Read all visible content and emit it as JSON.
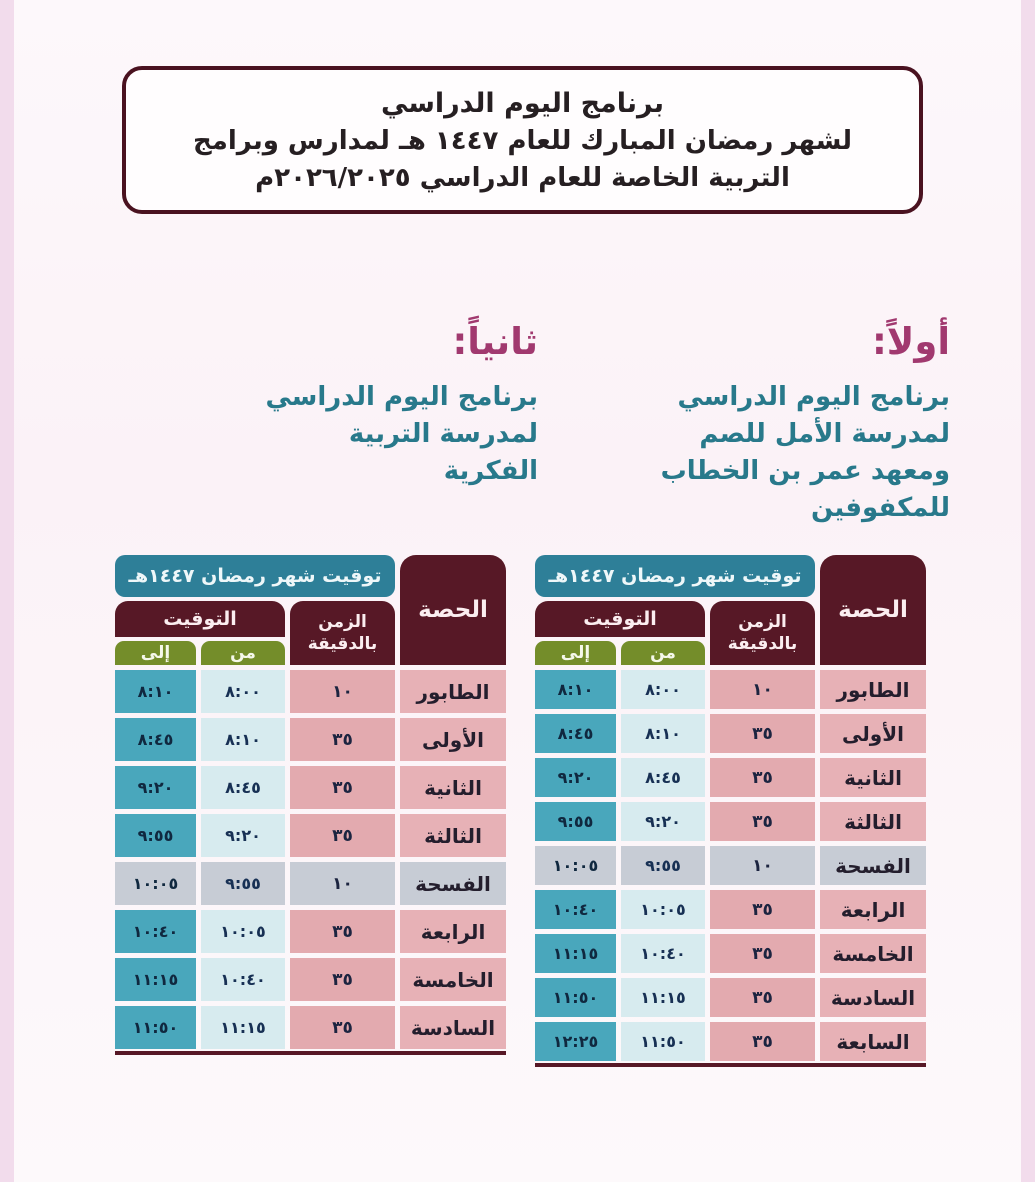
{
  "palette": {
    "page_background": "#fbf2f7",
    "edge_strip_pink": "#f2dcec",
    "maroon": "#571826",
    "teal_banner": "#2e7f98",
    "olive_green": "#748d2a",
    "magenta_heading": "#a1396f",
    "teal_text": "#28798b",
    "period_cell_pink": "#e7b1b6",
    "from_cell_blue": "#d7ebef",
    "to_cell_teal": "#49a7bc",
    "break_row_gray": "#c7ccd5"
  },
  "header": {
    "title": "برنامج اليوم الدراسي",
    "subtitle_line1": "لشهر رمضان المبارك للعام ١٤٤٧ هـ لمدارس وبرامج",
    "subtitle_line2": "التربية الخاصة للعام الدراسي ٢٠٢٦/٢٠٢٥م"
  },
  "sections": {
    "first": {
      "heading": "أولاً:",
      "description": "برنامج اليوم الدراسي\nلمدرسة الأمل للصم\nومعهد عمر بن الخطاب\nللمكفوفين"
    },
    "second": {
      "heading": "ثانياً:",
      "description": "برنامج اليوم الدراسي\nلمدرسة التربية الفكرية"
    }
  },
  "table_header": {
    "banner": "توقيت شهر رمضان ١٤٤٧هـ",
    "period": "الحصة",
    "duration_line1": "الزمن",
    "duration_line2": "بالدقيقة",
    "timing": "التوقيت",
    "from": "من",
    "to": "إلى"
  },
  "tables": [
    {
      "name": "first-school-schedule",
      "rows": [
        {
          "period": "الطابور",
          "minutes": "١٠",
          "from": "٨:٠٠",
          "to": "٨:١٠",
          "highlight": false
        },
        {
          "period": "الأولى",
          "minutes": "٣٥",
          "from": "٨:١٠",
          "to": "٨:٤٥",
          "highlight": false
        },
        {
          "period": "الثانية",
          "minutes": "٣٥",
          "from": "٨:٤٥",
          "to": "٩:٢٠",
          "highlight": false
        },
        {
          "period": "الثالثة",
          "minutes": "٣٥",
          "from": "٩:٢٠",
          "to": "٩:٥٥",
          "highlight": false
        },
        {
          "period": "الفسحة",
          "minutes": "١٠",
          "from": "٩:٥٥",
          "to": "١٠:٠٥",
          "highlight": true
        },
        {
          "period": "الرابعة",
          "minutes": "٣٥",
          "from": "١٠:٠٥",
          "to": "١٠:٤٠",
          "highlight": false
        },
        {
          "period": "الخامسة",
          "minutes": "٣٥",
          "from": "١٠:٤٠",
          "to": "١١:١٥",
          "highlight": false
        },
        {
          "period": "السادسة",
          "minutes": "٣٥",
          "from": "١١:١٥",
          "to": "١١:٥٠",
          "highlight": false
        },
        {
          "period": "السابعة",
          "minutes": "٣٥",
          "from": "١١:٥٠",
          "to": "١٢:٢٥",
          "highlight": false
        }
      ]
    },
    {
      "name": "second-school-schedule",
      "rows": [
        {
          "period": "الطابور",
          "minutes": "١٠",
          "from": "٨:٠٠",
          "to": "٨:١٠",
          "highlight": false
        },
        {
          "period": "الأولى",
          "minutes": "٣٥",
          "from": "٨:١٠",
          "to": "٨:٤٥",
          "highlight": false
        },
        {
          "period": "الثانية",
          "minutes": "٣٥",
          "from": "٨:٤٥",
          "to": "٩:٢٠",
          "highlight": false
        },
        {
          "period": "الثالثة",
          "minutes": "٣٥",
          "from": "٩:٢٠",
          "to": "٩:٥٥",
          "highlight": false
        },
        {
          "period": "الفسحة",
          "minutes": "١٠",
          "from": "٩:٥٥",
          "to": "١٠:٠٥",
          "highlight": true
        },
        {
          "period": "الرابعة",
          "minutes": "٣٥",
          "from": "١٠:٠٥",
          "to": "١٠:٤٠",
          "highlight": false
        },
        {
          "period": "الخامسة",
          "minutes": "٣٥",
          "from": "١٠:٤٠",
          "to": "١١:١٥",
          "highlight": false
        },
        {
          "period": "السادسة",
          "minutes": "٣٥",
          "from": "١١:١٥",
          "to": "١١:٥٠",
          "highlight": false
        }
      ]
    }
  ]
}
